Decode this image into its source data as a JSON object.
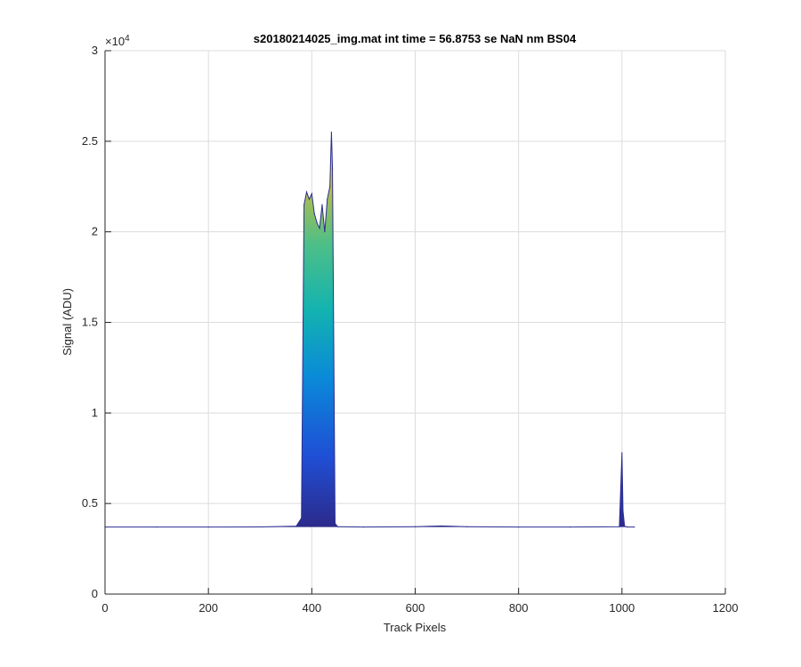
{
  "chart_data": {
    "type": "area",
    "title": "s20180214025_img.mat int time = 56.8753 se  NaN nm BS04",
    "xlabel": "Track Pixels",
    "ylabel": "Signal (ADU)",
    "y_exponent_label": "×10",
    "y_exponent_power": "4",
    "xlim": [
      0,
      1200
    ],
    "ylim": [
      0,
      30000
    ],
    "xticks": [
      0,
      200,
      400,
      600,
      800,
      1000,
      1200
    ],
    "xtick_labels": [
      "0",
      "200",
      "400",
      "600",
      "800",
      "1000",
      "1200"
    ],
    "yticks": [
      0,
      5000,
      10000,
      15000,
      20000,
      25000,
      30000
    ],
    "ytick_labels": [
      "0",
      "0.5",
      "1",
      "1.5",
      "2",
      "2.5",
      "3"
    ],
    "grid": true,
    "colormap": "parula",
    "colors": {
      "low": "#2c2a8a",
      "mid_blue": "#0a72e0",
      "teal": "#13b3b0",
      "green": "#7fbf4a",
      "high": "#f5e31a",
      "baseline": "#2b2c8f",
      "grid": "#dcdcdc",
      "axis": "#262626"
    },
    "series": [
      {
        "x": [
          0,
          100,
          200,
          300,
          370,
          380,
          385,
          390,
          395,
          400,
          405,
          410,
          415,
          420,
          425,
          430,
          435,
          438,
          440,
          445,
          450,
          500,
          600,
          650,
          700,
          800,
          900,
          995,
          1000,
          1002,
          1005,
          1010,
          1024
        ],
        "y": [
          3700,
          3700,
          3700,
          3710,
          3750,
          4200,
          21500,
          22200,
          21800,
          22100,
          21000,
          20500,
          20200,
          21500,
          20000,
          21800,
          22500,
          25500,
          23500,
          3900,
          3720,
          3700,
          3720,
          3760,
          3720,
          3700,
          3700,
          3720,
          7800,
          4600,
          3750,
          3700,
          3700
        ]
      }
    ]
  }
}
